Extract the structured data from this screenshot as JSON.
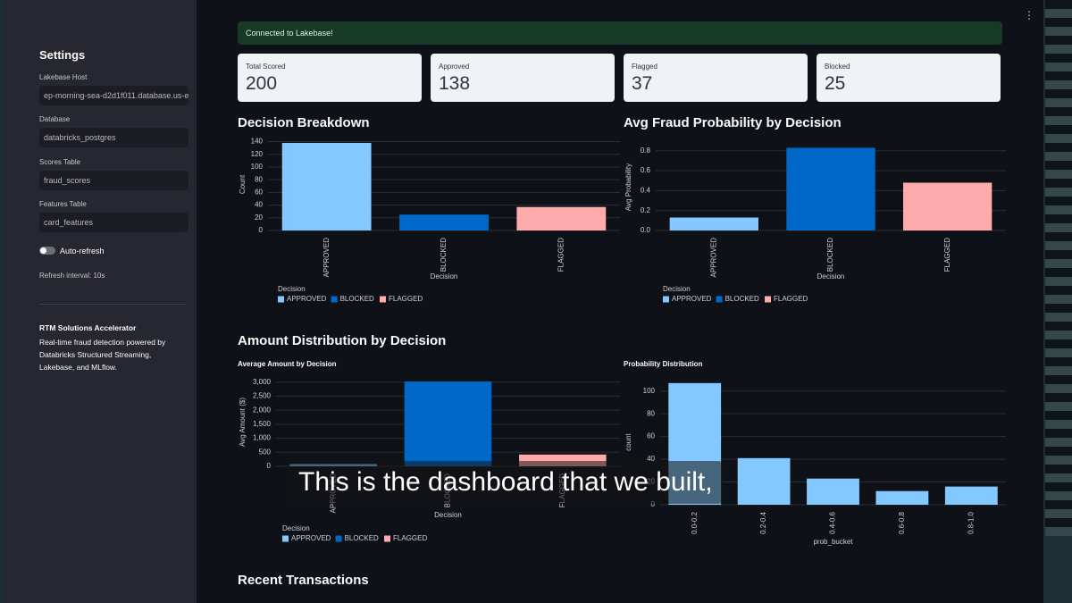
{
  "sidebar": {
    "title": "Settings",
    "fields": [
      {
        "label": "Lakebase Host",
        "value": "ep-morning-sea-d2d1f011.database.us-e"
      },
      {
        "label": "Database",
        "value": "databricks_postgres"
      },
      {
        "label": "Scores Table",
        "value": "fraud_scores"
      },
      {
        "label": "Features Table",
        "value": "card_features"
      }
    ],
    "toggle": "Auto-refresh",
    "refresh": "Refresh interval: 10s",
    "about_title": "RTM Solutions Accelerator",
    "about_text": "Real-time fraud detection powered by Databricks Structured Streaming, Lakebase, and MLflow."
  },
  "banner": "Connected to Lakebase!",
  "metrics": [
    {
      "label": "Total Scored",
      "value": 200
    },
    {
      "label": "Approved",
      "value": 138
    },
    {
      "label": "Flagged",
      "value": 37
    },
    {
      "label": "Blocked",
      "value": 25
    }
  ],
  "headings": [
    "Decision Breakdown",
    "Avg Fraud Probability by Decision",
    "Amount Distribution by Decision",
    "Recent Transactions"
  ],
  "caption": "This is the dashboard that we built,",
  "chart_data": [
    {
      "type": "bar",
      "categories": [
        "APPROVED",
        "BLOCKED",
        "FLAGGED"
      ],
      "values": [
        138,
        25,
        37
      ],
      "colors": [
        "#83c9ff",
        "#0068c9",
        "#ffabab"
      ],
      "ylim": [
        0,
        145
      ],
      "yticks": [
        0,
        20,
        40,
        60,
        80,
        100,
        120,
        140
      ],
      "xlabel": "Decision",
      "ylabel": "Count",
      "legend": true,
      "legend_title": "Decision",
      "grid": true
    },
    {
      "type": "bar",
      "categories": [
        "APPROVED",
        "BLOCKED",
        "FLAGGED"
      ],
      "values": [
        0.13,
        0.83,
        0.48
      ],
      "colors": [
        "#83c9ff",
        "#0068c9",
        "#ffabab"
      ],
      "ylim": [
        0,
        0.87
      ],
      "yticks": [
        {
          "value": 0,
          "label": "0.0"
        },
        0.2,
        0.4,
        0.6,
        0.8
      ],
      "xlabel": "Decision",
      "ylabel": "Avg Probability",
      "legend": true,
      "legend_title": "Decision",
      "grid": true
    },
    {
      "type": "bar",
      "title": "Average Amount by Decision",
      "categories": [
        "APPROVED",
        "BLOCKED",
        "FLAGGED"
      ],
      "values": [
        80,
        3020,
        420
      ],
      "colors": [
        "#83c9ff",
        "#0068c9",
        "#ffabab"
      ],
      "ylim": [
        0,
        3150
      ],
      "yticks": [
        0,
        500,
        {
          "value": 1000,
          "label": "1,000"
        },
        {
          "value": 1500,
          "label": "1,500"
        },
        {
          "value": 2000,
          "label": "2,000"
        },
        {
          "value": 2500,
          "label": "2,500"
        },
        {
          "value": 3000,
          "label": "3,000"
        }
      ],
      "xlabel": "Decision",
      "ylabel": "Avg Amount ($)",
      "legend": true,
      "legend_title": "Decision",
      "grid": true
    },
    {
      "type": "bar",
      "title": "Probability Distribution",
      "categories": [
        "0.0-0.2",
        "0.2-0.4",
        "0.4-0.6",
        "0.6-0.8",
        "0.8-1.0"
      ],
      "values": [
        107,
        41,
        23,
        12,
        16
      ],
      "color": "#83c9ff",
      "ylim": [
        0,
        110
      ],
      "yticks": [
        0,
        20,
        40,
        60,
        80,
        100
      ],
      "xlabel": "prob_bucket",
      "ylabel": "count",
      "legend": false,
      "grid": true
    }
  ]
}
